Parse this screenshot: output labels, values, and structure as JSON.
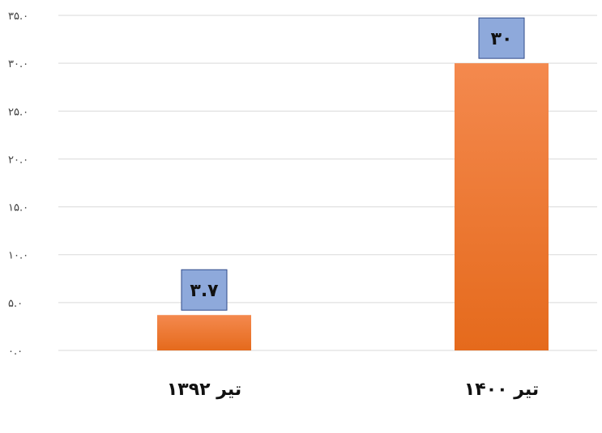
{
  "chart_data": {
    "type": "bar",
    "categories": [
      "تیر ۱۳۹۲",
      "تیر ۱۴۰۰"
    ],
    "values": [
      3.7,
      30
    ],
    "data_labels": [
      "۳.۷",
      "۳۰"
    ],
    "ylim": [
      0,
      35
    ],
    "yticks": [
      0,
      5,
      10,
      15,
      20,
      25,
      30,
      35
    ],
    "ytick_labels": [
      "۰.۰",
      "۵.۰",
      "۱۰.۰",
      "۱۵.۰",
      "۲۰.۰",
      "۲۵.۰",
      "۳۰.۰",
      "۳۵.۰"
    ],
    "grid": true,
    "legend": "none",
    "title": "",
    "xlabel": "",
    "ylabel": "",
    "colors": {
      "bar_top": "#F4894E",
      "bar_bottom": "#E56A1C",
      "label_box_fill": "#8EA9DB",
      "label_box_stroke": "#2F4A8A",
      "grid": "#D9D9D9"
    }
  }
}
